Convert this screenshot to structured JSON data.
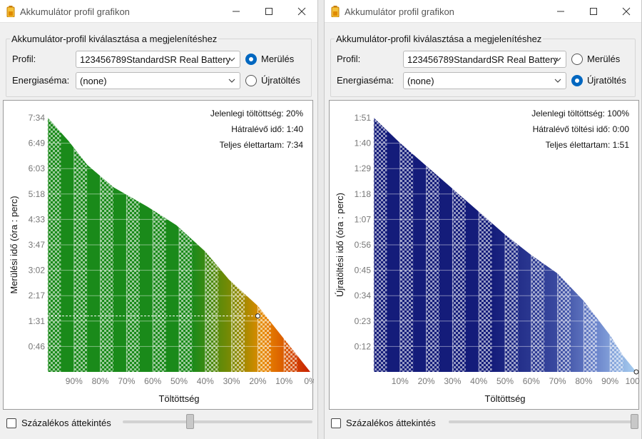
{
  "windows": [
    {
      "title": "Akkumulátor profil grafikon",
      "group_title": "Akkumulátor-profil kiválasztása a megjelenítéshez",
      "profile_label": "Profil:",
      "profile_value": "123456789StandardSR Real Battery",
      "scheme_label": "Energiaséma:",
      "scheme_value": "(none)",
      "radio_discharge": "Merülés",
      "radio_charge": "Újratöltés",
      "selected_mode": "Merülés",
      "percent_overview_label": "Százalékos áttekintés",
      "percent_overview_checked": false,
      "slider_value": 0.35,
      "colors": {
        "accent": "#0067c0"
      },
      "chart_data": {
        "type": "area",
        "mode": "discharge",
        "xlabel": "Töltöttség",
        "ylabel": "Merülési idő (óra : perc)",
        "x_axis_direction": "descending",
        "x_ticks": [
          "90%",
          "80%",
          "70%",
          "60%",
          "50%",
          "40%",
          "30%",
          "20%",
          "10%",
          "0%"
        ],
        "y_ticks": [
          "0:46",
          "1:31",
          "2:17",
          "3:02",
          "3:47",
          "4:33",
          "5:18",
          "6:03",
          "6:49",
          "7:34"
        ],
        "ylim_minutes": [
          0,
          454
        ],
        "x": [
          100,
          92,
          85,
          75,
          62,
          51,
          40,
          31,
          20,
          10,
          0
        ],
        "y_minutes": [
          454,
          412,
          370,
          330,
          295,
          262,
          215,
          165,
          118,
          59,
          0
        ],
        "current_charge_percent": 20,
        "current_time_minutes": 100,
        "info": [
          "Jelenlegi töltöttség: 20%",
          "Hátralévő idő: 1:40",
          "Teljes élettartam: 7:34"
        ],
        "colors": {
          "high": "#1a8a1a",
          "mid": "#8a8a00",
          "low": "#e88a00",
          "empty": "#c82000"
        },
        "grid": true
      }
    },
    {
      "title": "Akkumulátor profil grafikon",
      "group_title": "Akkumulátor-profil kiválasztása a megjelenítéshez",
      "profile_label": "Profil:",
      "profile_value": "123456789StandardSR Real Battery",
      "scheme_label": "Energiaséma:",
      "scheme_value": "(none)",
      "radio_discharge": "Merülés",
      "radio_charge": "Újratöltés",
      "selected_mode": "Újratöltés",
      "percent_overview_label": "Százalékos áttekintés",
      "percent_overview_checked": false,
      "slider_value": 1.0,
      "colors": {
        "accent": "#0067c0"
      },
      "chart_data": {
        "type": "area",
        "mode": "charge",
        "xlabel": "Töltöttség",
        "ylabel": "Újratöltési idő (óra : perc)",
        "x_axis_direction": "ascending",
        "x_ticks": [
          "10%",
          "20%",
          "30%",
          "40%",
          "50%",
          "60%",
          "70%",
          "80%",
          "90%",
          "100%"
        ],
        "y_ticks": [
          "0:12",
          "0:23",
          "0:34",
          "0:45",
          "0:56",
          "1:07",
          "1:18",
          "1:29",
          "1:40",
          "1:51"
        ],
        "ylim_minutes": [
          0,
          111
        ],
        "x": [
          0,
          10,
          20,
          30,
          40,
          50,
          60,
          70,
          80,
          90,
          95,
          100
        ],
        "y_minutes": [
          111,
          100,
          90,
          80,
          70,
          60,
          51,
          43,
          31,
          16,
          7,
          0
        ],
        "current_charge_percent": 100,
        "current_time_minutes": 0,
        "info": [
          "Jelenlegi töltöttség: 100%",
          "Hátralévő töltési idő: 0:00",
          "Teljes élettartam: 1:51"
        ],
        "colors": {
          "low": "#141c7a",
          "mid": "#3a4aa0",
          "high": "#6d86cc",
          "full": "#a8cff0"
        },
        "grid": true
      }
    }
  ]
}
